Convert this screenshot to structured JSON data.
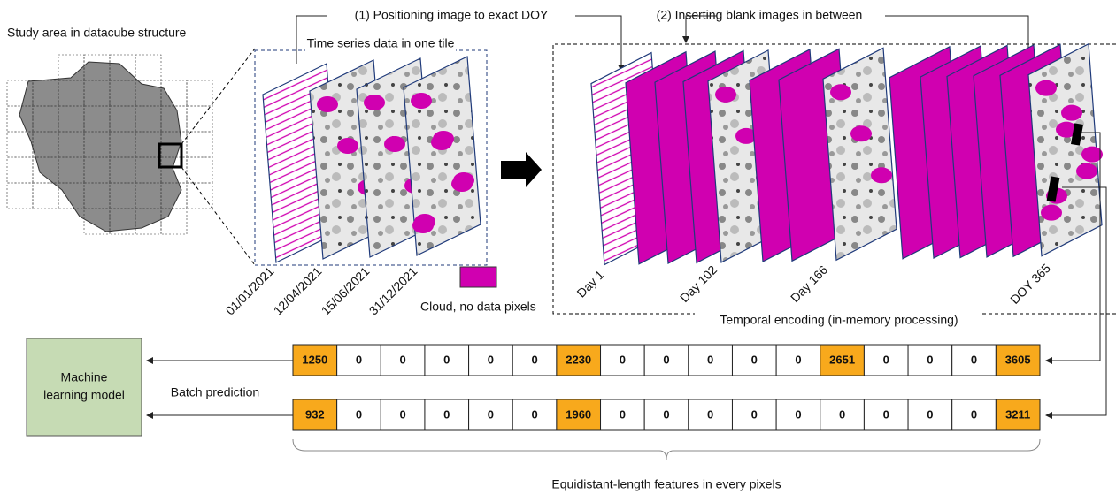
{
  "study_area_title": "Study area in datacube structure",
  "tile_label": "Time series data in one tile",
  "step1_label": "(1) Positioning image to exact DOY",
  "step2_label": "(2) Inserting blank images in between",
  "input_dates": [
    "01/01/2021",
    "12/04/2021",
    "15/06/2021",
    "31/12/2021"
  ],
  "cloud_legend": "Cloud, no data pixels",
  "output_days": [
    "Day 1",
    "Day 102",
    "Day 166",
    "DOY 365"
  ],
  "encoding_label": "Temporal encoding (in-memory processing)",
  "model_label": [
    "Machine",
    "learning model"
  ],
  "batch_label": "Batch prediction",
  "feature_rows": [
    [
      1250,
      0,
      0,
      0,
      0,
      0,
      2230,
      0,
      0,
      0,
      0,
      0,
      2651,
      0,
      0,
      0,
      3605
    ],
    [
      932,
      0,
      0,
      0,
      0,
      0,
      1960,
      0,
      0,
      0,
      0,
      0,
      0,
      0,
      0,
      0,
      3211
    ]
  ],
  "features_label": "Equidistant-length features in every pixels"
}
